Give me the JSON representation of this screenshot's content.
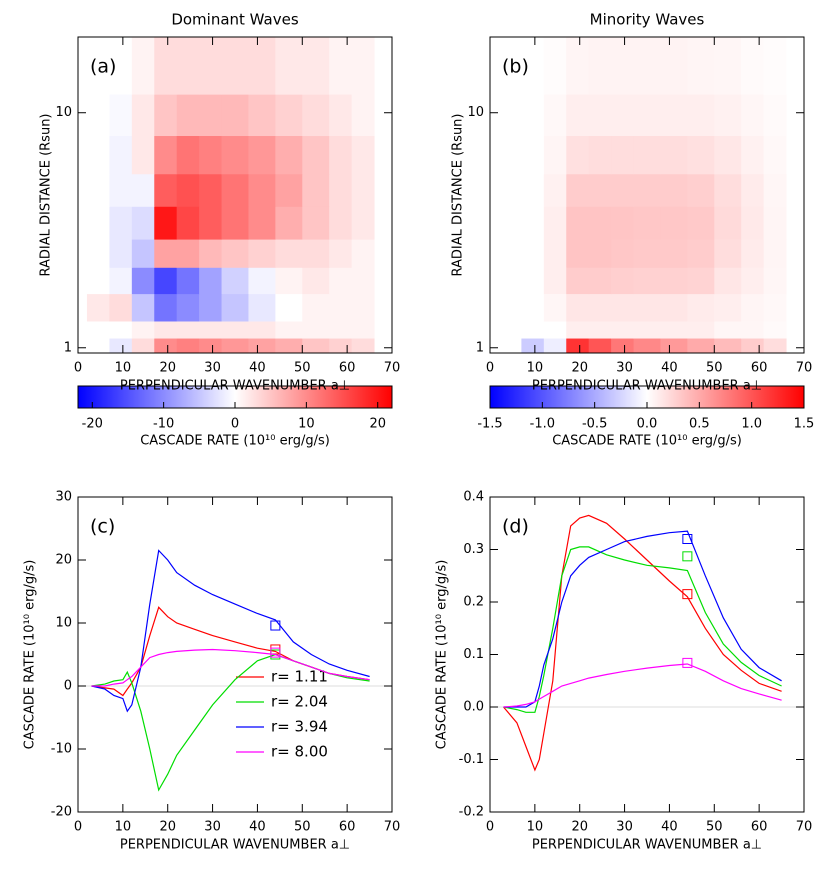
{
  "chart_data": [
    {
      "type": "heatmap",
      "title": "Dominant Waves",
      "label": "(a)",
      "xlabel": "PERPENDICULAR WAVENUMBER a⊥",
      "ylabel": "RADIAL DISTANCE (Rsun)",
      "xlim": [
        0,
        70
      ],
      "xticks": [
        0,
        10,
        20,
        30,
        40,
        50,
        60,
        70
      ],
      "ylim": [
        0.95,
        21
      ],
      "yticks": [
        1,
        10
      ],
      "ylog": true,
      "xbins": [
        2,
        7,
        12,
        17,
        22,
        27,
        32,
        38,
        44,
        50,
        56,
        61,
        66
      ],
      "ybins": [
        0.95,
        1.1,
        1.3,
        1.7,
        2.2,
        2.9,
        4,
        5.5,
        8,
        12,
        21
      ],
      "values": [
        [
          0,
          -2,
          3,
          10,
          11,
          10,
          9,
          8,
          7,
          5,
          4,
          3
        ],
        [
          0,
          0,
          1,
          2,
          2,
          2,
          2,
          2,
          1,
          1,
          1,
          1
        ],
        [
          2,
          3,
          -5,
          -12,
          -10,
          -8,
          -5,
          -2,
          0,
          1,
          1,
          1
        ],
        [
          0,
          -1,
          -10,
          -16,
          -12,
          -8,
          -4,
          -1,
          1,
          2,
          1,
          1
        ],
        [
          0,
          -2,
          -5,
          8,
          8,
          6,
          5,
          4,
          3,
          3,
          2,
          1
        ],
        [
          0,
          -2,
          -3,
          20,
          16,
          14,
          12,
          10,
          7,
          5,
          3,
          2
        ],
        [
          0,
          -1,
          -1,
          14,
          15,
          14,
          12,
          10,
          8,
          5,
          3,
          2
        ],
        [
          0,
          -1,
          2,
          10,
          12,
          11,
          10,
          9,
          7,
          5,
          3,
          2
        ],
        [
          0,
          -0.5,
          2,
          5,
          6,
          6,
          6,
          5,
          4,
          3,
          2,
          1
        ],
        [
          0,
          0,
          1,
          3,
          3,
          3,
          3,
          3,
          2,
          2,
          1,
          1
        ]
      ],
      "colormap": [
        "#0000ff",
        "#ffffff",
        "#ff0000"
      ],
      "colorbar": {
        "zlim": [
          -22,
          22
        ],
        "ticks": [
          -20,
          -10,
          0,
          10,
          20
        ],
        "label": "CASCADE RATE (10¹⁰ erg/g/s)"
      }
    },
    {
      "type": "heatmap",
      "title": "Minority Waves",
      "label": "(b)",
      "xlabel": "PERPENDICULAR WAVENUMBER a⊥",
      "ylabel": "RADIAL DISTANCE (Rsun)",
      "xlim": [
        0,
        70
      ],
      "xticks": [
        0,
        10,
        20,
        30,
        40,
        50,
        60,
        70
      ],
      "ylim": [
        0.95,
        21
      ],
      "yticks": [
        1,
        10
      ],
      "ylog": true,
      "xbins": [
        2,
        7,
        12,
        17,
        22,
        27,
        32,
        38,
        44,
        50,
        56,
        61,
        66
      ],
      "ybins": [
        0.95,
        1.1,
        1.3,
        1.7,
        2.2,
        2.9,
        4,
        5.5,
        8,
        12,
        21
      ],
      "values": [
        [
          0,
          -0.3,
          -0.1,
          1.2,
          1.0,
          0.8,
          0.7,
          0.6,
          0.5,
          0.4,
          0.3,
          0.2
        ],
        [
          0,
          0,
          0,
          0.1,
          0.1,
          0.1,
          0.1,
          0.1,
          0.1,
          0.05,
          0.05,
          0.03
        ],
        [
          0,
          0,
          0.05,
          0.15,
          0.15,
          0.15,
          0.15,
          0.15,
          0.12,
          0.1,
          0.06,
          0.04
        ],
        [
          0,
          0,
          0.1,
          0.3,
          0.3,
          0.28,
          0.27,
          0.27,
          0.26,
          0.15,
          0.1,
          0.05
        ],
        [
          0,
          0,
          0.1,
          0.35,
          0.35,
          0.33,
          0.32,
          0.32,
          0.3,
          0.2,
          0.12,
          0.06
        ],
        [
          0,
          0,
          0.1,
          0.35,
          0.35,
          0.34,
          0.33,
          0.33,
          0.32,
          0.22,
          0.13,
          0.06
        ],
        [
          0,
          0,
          0.08,
          0.3,
          0.3,
          0.3,
          0.3,
          0.3,
          0.28,
          0.2,
          0.12,
          0.05
        ],
        [
          0,
          0,
          0.06,
          0.18,
          0.2,
          0.2,
          0.2,
          0.2,
          0.18,
          0.14,
          0.08,
          0.04
        ],
        [
          0,
          0,
          0.04,
          0.1,
          0.1,
          0.1,
          0.1,
          0.1,
          0.1,
          0.08,
          0.05,
          0.03
        ],
        [
          0,
          0,
          0.02,
          0.06,
          0.07,
          0.07,
          0.07,
          0.07,
          0.06,
          0.05,
          0.03,
          0.02
        ]
      ],
      "colormap": [
        "#0000ff",
        "#ffffff",
        "#ff0000"
      ],
      "colorbar": {
        "zlim": [
          -1.5,
          1.5
        ],
        "ticks": [
          -1.5,
          {
            "value": -1,
            "label": "-1.0"
          },
          -0.5,
          {
            "value": 0,
            "label": "0.0"
          },
          0.5,
          {
            "value": 1,
            "label": "1.0"
          },
          1.5
        ],
        "label": "CASCADE RATE (10¹⁰ erg/g/s)"
      }
    },
    {
      "type": "line",
      "label": "(c)",
      "xlabel": "PERPENDICULAR WAVENUMBER a⊥",
      "ylabel": "CASCADE RATE (10¹⁰ erg/g/s)",
      "xlim": [
        0,
        70
      ],
      "xticks": [
        0,
        10,
        20,
        30,
        40,
        50,
        60,
        70
      ],
      "ylim": [
        -20,
        30
      ],
      "yticks": [
        -20,
        -10,
        0,
        10,
        20,
        30
      ],
      "legend": true,
      "x": [
        3,
        6,
        8,
        10,
        11,
        12,
        14,
        16,
        18,
        20,
        22,
        26,
        30,
        35,
        40,
        44,
        48,
        52,
        56,
        60,
        65
      ],
      "series": [
        {
          "name": "r= 1.11",
          "color": "#ff0000",
          "values": [
            0,
            -0.3,
            -0.5,
            -1.5,
            -0.5,
            0.5,
            3,
            8,
            12.5,
            11,
            10,
            9,
            8,
            7,
            6,
            5.5,
            4,
            3,
            2,
            1.5,
            1
          ],
          "marker": {
            "x": 44,
            "y": 5.8
          }
        },
        {
          "name": "r= 2.04",
          "color": "#00dd00",
          "values": [
            0,
            0.3,
            0.8,
            1,
            2.2,
            0.5,
            -4,
            -10,
            -16.5,
            -14,
            -11,
            -7,
            -3,
            1,
            4,
            5,
            4,
            3,
            2,
            1.3,
            0.8
          ],
          "marker": {
            "x": 44,
            "y": 5
          }
        },
        {
          "name": "r= 3.94",
          "color": "#0000ff",
          "values": [
            0,
            -0.5,
            -1.5,
            -2,
            -4,
            -3,
            3,
            13,
            21.5,
            20,
            18,
            16,
            14.5,
            13,
            11.5,
            10.5,
            7,
            5,
            3.5,
            2.5,
            1.5
          ],
          "marker": {
            "x": 44,
            "y": 9.6
          }
        },
        {
          "name": "r= 8.00",
          "color": "#ff00ff",
          "values": [
            0,
            0,
            0.3,
            0.5,
            1,
            1.5,
            3,
            4.5,
            5,
            5.3,
            5.5,
            5.7,
            5.8,
            5.6,
            5.3,
            5,
            4,
            3,
            2,
            1.5,
            1
          ],
          "marker": {
            "x": 44,
            "y": 5.3
          }
        }
      ]
    },
    {
      "type": "line",
      "label": "(d)",
      "xlabel": "PERPENDICULAR WAVENUMBER a⊥",
      "ylabel": "CASCADE RATE (10¹⁰ erg/g/s)",
      "xlim": [
        0,
        70
      ],
      "xticks": [
        0,
        10,
        20,
        30,
        40,
        50,
        60,
        70
      ],
      "ylim": [
        -0.2,
        0.4
      ],
      "yticks": [
        -0.2,
        -0.1,
        {
          "value": 0,
          "label": "0.0"
        },
        0.1,
        0.2,
        0.3,
        0.4
      ],
      "x": [
        3,
        6,
        8,
        10,
        11,
        12,
        14,
        16,
        18,
        20,
        22,
        26,
        30,
        35,
        40,
        44,
        48,
        52,
        56,
        60,
        65
      ],
      "series": [
        {
          "color": "#ff0000",
          "values": [
            0,
            -0.03,
            -0.075,
            -0.12,
            -0.1,
            -0.05,
            0.05,
            0.25,
            0.345,
            0.36,
            0.365,
            0.35,
            0.32,
            0.28,
            0.24,
            0.21,
            0.15,
            0.1,
            0.07,
            0.045,
            0.03
          ],
          "marker": {
            "x": 44,
            "y": 0.215
          }
        },
        {
          "color": "#00dd00",
          "values": [
            0,
            -0.005,
            -0.01,
            -0.01,
            0.02,
            0.06,
            0.15,
            0.25,
            0.3,
            0.305,
            0.305,
            0.29,
            0.28,
            0.27,
            0.265,
            0.26,
            0.18,
            0.12,
            0.085,
            0.06,
            0.04
          ],
          "marker": {
            "x": 44,
            "y": 0.287
          }
        },
        {
          "color": "#0000ff",
          "values": [
            0,
            0,
            0,
            0.01,
            0.04,
            0.08,
            0.13,
            0.2,
            0.25,
            0.27,
            0.285,
            0.3,
            0.315,
            0.325,
            0.332,
            0.335,
            0.25,
            0.17,
            0.11,
            0.075,
            0.05
          ],
          "marker": {
            "x": 44,
            "y": 0.32
          }
        },
        {
          "color": "#ff00ff",
          "values": [
            0,
            0.002,
            0.005,
            0.01,
            0.015,
            0.02,
            0.03,
            0.04,
            0.045,
            0.05,
            0.055,
            0.062,
            0.068,
            0.074,
            0.079,
            0.082,
            0.068,
            0.05,
            0.035,
            0.025,
            0.013
          ],
          "marker": {
            "x": 44,
            "y": 0.084
          }
        }
      ]
    }
  ]
}
